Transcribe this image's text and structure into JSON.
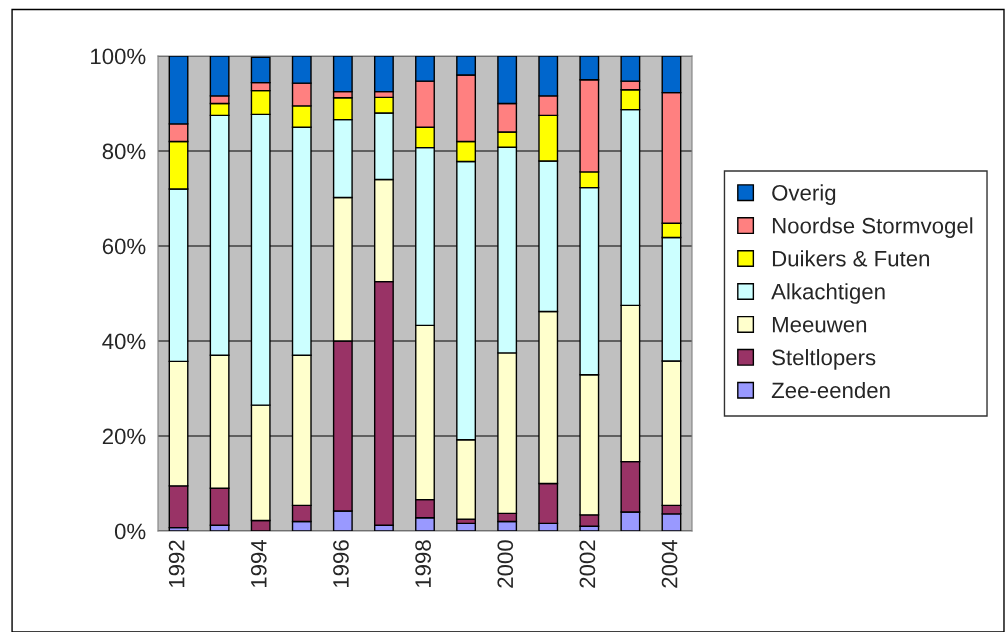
{
  "chart_data": {
    "type": "bar",
    "stacked": true,
    "categories": [
      "1992",
      null,
      "1994",
      null,
      "1996",
      null,
      "1998",
      null,
      "2000",
      null,
      "2002",
      null,
      "2004"
    ],
    "series": [
      {
        "name": "Zee-eenden",
        "color": "#9999ff",
        "values": [
          0.7,
          1.2,
          null,
          2,
          4.2,
          1.2,
          2.8,
          1.6,
          2,
          1.6,
          1,
          4,
          3.6
        ]
      },
      {
        "name": "Steltlopers",
        "color": "#993366",
        "values": [
          8.8,
          7.8,
          2.2,
          3.4,
          35.8,
          51.3,
          3.8,
          0.9,
          1.7,
          8.4,
          2.4,
          10.6,
          1.8
        ]
      },
      {
        "name": "Meeuwen",
        "color": "#ffffcc",
        "values": [
          26.2,
          28,
          24.3,
          31.6,
          30.2,
          21.5,
          36.7,
          16.7,
          33.8,
          36.2,
          29.5,
          32.9,
          30.4
        ]
      },
      {
        "name": "Alkachtigen",
        "color": "#ccffff",
        "values": [
          36.3,
          50.5,
          61.2,
          48,
          16.4,
          14,
          37.4,
          58.6,
          43.3,
          31.7,
          39.4,
          41.2,
          26
        ]
      },
      {
        "name": "Duikers & Futen",
        "color": "#ffff00",
        "values": [
          10,
          2.5,
          5,
          4.5,
          4.6,
          3.3,
          4.3,
          4.2,
          3.2,
          9.6,
          3.3,
          4.2,
          3
        ]
      },
      {
        "name": "Noordse Stormvogel",
        "color": "#ff8080",
        "values": [
          3.7,
          1.6,
          1.7,
          4.8,
          1.3,
          1.2,
          9.7,
          14,
          6,
          4.1,
          19.4,
          1.8,
          27.5
        ]
      },
      {
        "name": "Overig",
        "color": "#0066cc",
        "values": [
          14.3,
          8.4,
          5.3,
          5.7,
          7.5,
          7.5,
          5.3,
          4,
          10,
          8.4,
          5,
          5.3,
          7.7
        ]
      }
    ],
    "ylim": [
      0,
      100
    ],
    "yticks": [
      {
        "value": 0,
        "label": "0%"
      },
      {
        "value": 20,
        "label": "20%"
      },
      {
        "value": 40,
        "label": "40%"
      },
      {
        "value": 60,
        "label": "60%"
      },
      {
        "value": 80,
        "label": "80%"
      },
      {
        "value": 100,
        "label": "100%"
      }
    ],
    "grid": "y",
    "legend": "right"
  }
}
